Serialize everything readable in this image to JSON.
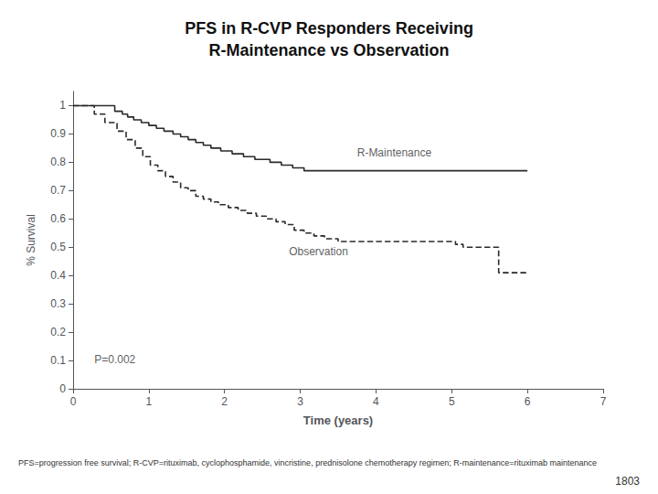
{
  "chart_data": {
    "type": "step",
    "title": "PFS in R-CVP Responders Receiving\nR-Maintenance vs Observation",
    "xlabel": "Time (years)",
    "ylabel": "% Survival",
    "xlim": [
      0,
      7
    ],
    "ylim": [
      0,
      1.05
    ],
    "xticks": [
      0,
      1,
      2,
      3,
      4,
      5,
      6,
      7
    ],
    "yticks": [
      0,
      0.1,
      0.2,
      0.3,
      0.4,
      0.5,
      0.6,
      0.7,
      0.8,
      0.9,
      1
    ],
    "grid": false,
    "series": [
      {
        "color": "#2a2a2a",
        "line_style": "solid",
        "x": [
          0,
          0.55,
          0.65,
          0.72,
          0.8,
          0.9,
          1.0,
          1.1,
          1.2,
          1.32,
          1.42,
          1.52,
          1.62,
          1.72,
          1.82,
          1.95,
          2.1,
          2.25,
          2.4,
          2.6,
          2.75,
          2.9,
          3.05,
          3.2,
          3.35,
          3.5,
          3.65,
          3.8,
          4.0,
          4.5,
          5.0,
          5.5,
          6.0
        ],
        "values": [
          1.0,
          0.98,
          0.97,
          0.96,
          0.95,
          0.94,
          0.93,
          0.92,
          0.91,
          0.9,
          0.89,
          0.88,
          0.87,
          0.86,
          0.85,
          0.84,
          0.83,
          0.82,
          0.81,
          0.8,
          0.79,
          0.78,
          0.77,
          0.77,
          0.77,
          0.77,
          0.77,
          0.77,
          0.77,
          0.77,
          0.77,
          0.77,
          0.77
        ]
      },
      {
        "color": "#2a2a2a",
        "line_style": "dashed",
        "x": [
          0,
          0.28,
          0.42,
          0.58,
          0.7,
          0.82,
          0.92,
          1.02,
          1.12,
          1.22,
          1.32,
          1.42,
          1.52,
          1.62,
          1.72,
          1.82,
          1.92,
          2.05,
          2.18,
          2.3,
          2.42,
          2.55,
          2.68,
          2.8,
          2.92,
          3.05,
          3.18,
          3.32,
          3.5,
          3.68,
          3.85,
          4.1,
          4.5,
          4.9,
          5.05,
          5.15,
          5.5,
          5.62,
          6.0
        ],
        "values": [
          1.0,
          0.97,
          0.94,
          0.91,
          0.88,
          0.85,
          0.82,
          0.79,
          0.77,
          0.75,
          0.73,
          0.71,
          0.7,
          0.68,
          0.67,
          0.66,
          0.65,
          0.64,
          0.63,
          0.62,
          0.61,
          0.6,
          0.59,
          0.58,
          0.56,
          0.55,
          0.54,
          0.53,
          0.52,
          0.52,
          0.52,
          0.52,
          0.52,
          0.52,
          0.51,
          0.5,
          0.5,
          0.41,
          0.41
        ]
      }
    ],
    "annotations": [
      {
        "text": "P=0.002",
        "x": 0.28,
        "y": 0.085
      },
      {
        "text": "R-Maintenance",
        "x": 3.75,
        "y": 0.815
      },
      {
        "text": "Observation",
        "x": 2.85,
        "y": 0.465
      }
    ],
    "footnote": "PFS=progression free survival; R-CVP=rituximab, cyclophosphamide, vincristine, prednisolone chemotherapy regimen; R-maintenance=rituximab maintenance",
    "page_number": "1803"
  }
}
